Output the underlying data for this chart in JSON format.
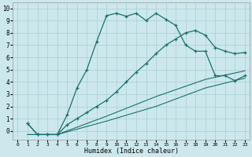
{
  "xlabel": "Humidex (Indice chaleur)",
  "background_color": "#cce8ec",
  "grid_color": "#aacdd4",
  "line_color": "#1a7070",
  "xlim": [
    -0.5,
    23.5
  ],
  "ylim": [
    -0.7,
    10.5
  ],
  "xticks": [
    0,
    1,
    2,
    3,
    4,
    5,
    6,
    7,
    8,
    9,
    10,
    11,
    12,
    13,
    14,
    15,
    16,
    17,
    18,
    19,
    20,
    21,
    22,
    23
  ],
  "yticks": [
    0,
    1,
    2,
    3,
    4,
    5,
    6,
    7,
    8,
    9,
    10
  ],
  "line1_x": [
    1,
    2,
    3,
    4,
    5,
    6,
    7,
    8,
    9,
    10,
    11,
    12,
    13,
    14,
    15,
    16,
    17,
    18,
    19,
    20,
    21,
    22,
    23
  ],
  "line1_y": [
    0.6,
    -0.3,
    -0.3,
    -0.3,
    1.3,
    3.5,
    5.0,
    7.3,
    9.4,
    9.6,
    9.35,
    9.6,
    9.0,
    9.6,
    9.1,
    8.6,
    7.0,
    6.5,
    6.5,
    4.5,
    4.5,
    4.1,
    4.5
  ],
  "line2_x": [
    1,
    2,
    3,
    4,
    5,
    6,
    7,
    8,
    9,
    10,
    11,
    12,
    13,
    14,
    15,
    16,
    17,
    18,
    19,
    20,
    21,
    22,
    23
  ],
  "line2_y": [
    0.6,
    -0.3,
    -0.3,
    -0.3,
    0.5,
    1.0,
    1.5,
    2.0,
    2.5,
    3.2,
    4.0,
    4.8,
    5.5,
    6.3,
    7.0,
    7.5,
    8.0,
    8.2,
    7.8,
    6.8,
    6.5,
    6.3,
    6.4
  ],
  "line3_x": [
    1,
    4,
    9,
    14,
    19,
    23
  ],
  "line3_y": [
    -0.3,
    -0.3,
    1.2,
    2.8,
    4.2,
    4.9
  ],
  "line4_x": [
    1,
    4,
    9,
    14,
    19,
    23
  ],
  "line4_y": [
    -0.3,
    -0.3,
    0.8,
    2.0,
    3.5,
    4.3
  ]
}
